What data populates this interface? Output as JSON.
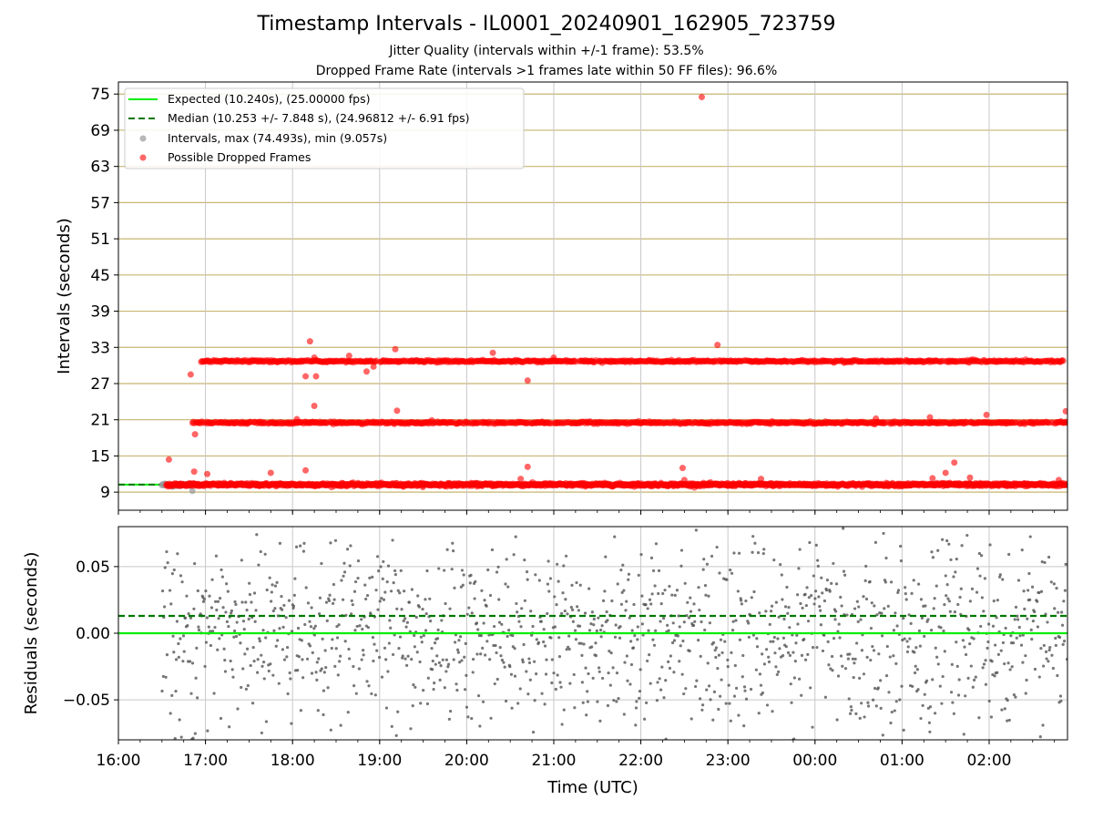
{
  "figure": {
    "title": "Timestamp Intervals - IL0001_20240901_162905_723759",
    "subtitle1": "Jitter Quality (intervals within +/-1 frame): 53.5%",
    "subtitle2": "Dropped Frame Rate (intervals >1 frames late within 50 FF files): 96.6%"
  },
  "colors": {
    "expected": "#00ee00",
    "median": "#007700",
    "interval": "#999999",
    "dropped": "#ff0000",
    "residual": "#555555",
    "grid_top": "#c8b572",
    "grid": "#c8c8c8"
  },
  "chart_data": [
    {
      "type": "scatter",
      "panel": "intervals",
      "ylabel": "Intervals (seconds)",
      "xlabel": "",
      "y_ticks": [
        9,
        15,
        21,
        27,
        33,
        39,
        45,
        51,
        57,
        63,
        69,
        75
      ],
      "ylim": [
        6,
        77
      ],
      "x_ticks": [
        "16:00",
        "17:00",
        "18:00",
        "19:00",
        "20:00",
        "21:00",
        "22:00",
        "23:00",
        "00:00",
        "01:00",
        "02:00"
      ],
      "xlim_hours": [
        16.0,
        26.9
      ],
      "grid": true,
      "legend_position": "top-left",
      "legend": [
        {
          "key": "expected",
          "label": "Expected (10.240s), (25.00000 fps)"
        },
        {
          "key": "median",
          "label": "Median (10.253 +/- 7.848 s), (24.96812 +/- 6.91 fps)"
        },
        {
          "key": "interval",
          "label": "Intervals, max (74.493s), min (9.057s)"
        },
        {
          "key": "dropped",
          "label": "Possible Dropped Frames"
        }
      ],
      "expected_interval": 10.24,
      "median_interval": 10.253,
      "max_interval": 74.493,
      "min_interval": 9.057,
      "bands": [
        {
          "name": "base",
          "level": 10.24,
          "x_start": 16.55,
          "x_end": 26.9
        },
        {
          "name": "double",
          "level": 20.5,
          "x_start": 16.85,
          "x_end": 26.9
        },
        {
          "name": "triple",
          "level": 30.7,
          "x_start": 16.95,
          "x_end": 26.85
        }
      ],
      "outliers": [
        {
          "x": 16.58,
          "y": 14.4
        },
        {
          "x": 16.83,
          "y": 28.5
        },
        {
          "x": 16.88,
          "y": 18.6
        },
        {
          "x": 16.87,
          "y": 12.4
        },
        {
          "x": 17.02,
          "y": 12.0
        },
        {
          "x": 17.75,
          "y": 12.2
        },
        {
          "x": 18.05,
          "y": 21.1
        },
        {
          "x": 18.15,
          "y": 28.2
        },
        {
          "x": 18.2,
          "y": 34.0
        },
        {
          "x": 18.25,
          "y": 31.3
        },
        {
          "x": 18.27,
          "y": 28.2
        },
        {
          "x": 18.25,
          "y": 23.3
        },
        {
          "x": 18.15,
          "y": 12.6
        },
        {
          "x": 18.65,
          "y": 31.6
        },
        {
          "x": 18.85,
          "y": 29.0
        },
        {
          "x": 18.93,
          "y": 29.8
        },
        {
          "x": 19.18,
          "y": 32.7
        },
        {
          "x": 19.2,
          "y": 22.5
        },
        {
          "x": 19.25,
          "y": 20.5
        },
        {
          "x": 19.6,
          "y": 20.9
        },
        {
          "x": 20.3,
          "y": 32.1
        },
        {
          "x": 20.62,
          "y": 11.2
        },
        {
          "x": 20.7,
          "y": 27.5
        },
        {
          "x": 20.7,
          "y": 13.2
        },
        {
          "x": 21.0,
          "y": 31.3
        },
        {
          "x": 22.48,
          "y": 13.0
        },
        {
          "x": 22.5,
          "y": 11.0
        },
        {
          "x": 22.7,
          "y": 74.5
        },
        {
          "x": 22.88,
          "y": 33.4
        },
        {
          "x": 23.38,
          "y": 11.2
        },
        {
          "x": 24.7,
          "y": 21.2
        },
        {
          "x": 25.35,
          "y": 11.3
        },
        {
          "x": 25.32,
          "y": 21.4
        },
        {
          "x": 25.5,
          "y": 12.2
        },
        {
          "x": 25.6,
          "y": 13.9
        },
        {
          "x": 25.78,
          "y": 11.4
        },
        {
          "x": 25.97,
          "y": 21.8
        },
        {
          "x": 26.8,
          "y": 11.0
        },
        {
          "x": 26.88,
          "y": 22.4
        }
      ]
    },
    {
      "type": "scatter",
      "panel": "residuals",
      "ylabel": "Residuals (seconds)",
      "xlabel": "Time (UTC)",
      "y_ticks": [
        -0.05,
        0.0,
        0.05
      ],
      "y_tick_labels": [
        "−0.05",
        "0.00",
        "0.05"
      ],
      "ylim": [
        -0.08,
        0.08
      ],
      "x_ticks": [
        "16:00",
        "17:00",
        "18:00",
        "19:00",
        "20:00",
        "21:00",
        "22:00",
        "23:00",
        "00:00",
        "01:00",
        "02:00"
      ],
      "xlim_hours": [
        16.0,
        26.9
      ],
      "grid": true,
      "expected_line": 0.0,
      "median_line": 0.013,
      "x_start": 16.5,
      "x_end": 26.9,
      "spread": 0.035
    }
  ]
}
